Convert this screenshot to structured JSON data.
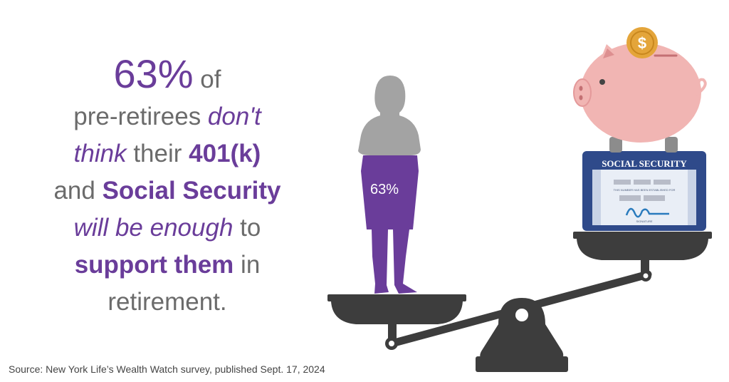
{
  "headline": {
    "stat": "63%",
    "l1_after": " of",
    "l2_plain": "pre-retirees ",
    "l2_it": "don't",
    "l3_it": "think",
    "l3_plain": " their ",
    "l3_b": "401(k)",
    "l4_plain": "and ",
    "l4_b": "Social Security",
    "l5_it": "will be enough",
    "l5_plain": " to",
    "l6_b": "support them",
    "l6_plain": " in",
    "l7": "retirement."
  },
  "figure": {
    "skirt_label": "63%"
  },
  "card": {
    "title": "SOCIAL SECURITY",
    "subline": "THIS NUMBER HAS BEEN ESTABLISHED FOR",
    "signature_label": "SIGNATURE"
  },
  "source": "Source: New York Life’s Wealth Watch survey, published Sept. 17, 2024",
  "colors": {
    "purple": "#6a3d9a",
    "gray_text": "#6b6b6b",
    "scale": "#3d3d3d",
    "silhouette": "#a3a3a3",
    "pig": "#f1b5b3",
    "coin": "#e4a53a",
    "card_blue": "#2f4a8a"
  },
  "icons": [
    "woman-silhouette-icon",
    "scale-icon",
    "piggy-bank-icon",
    "coin-icon",
    "social-security-card-icon"
  ]
}
